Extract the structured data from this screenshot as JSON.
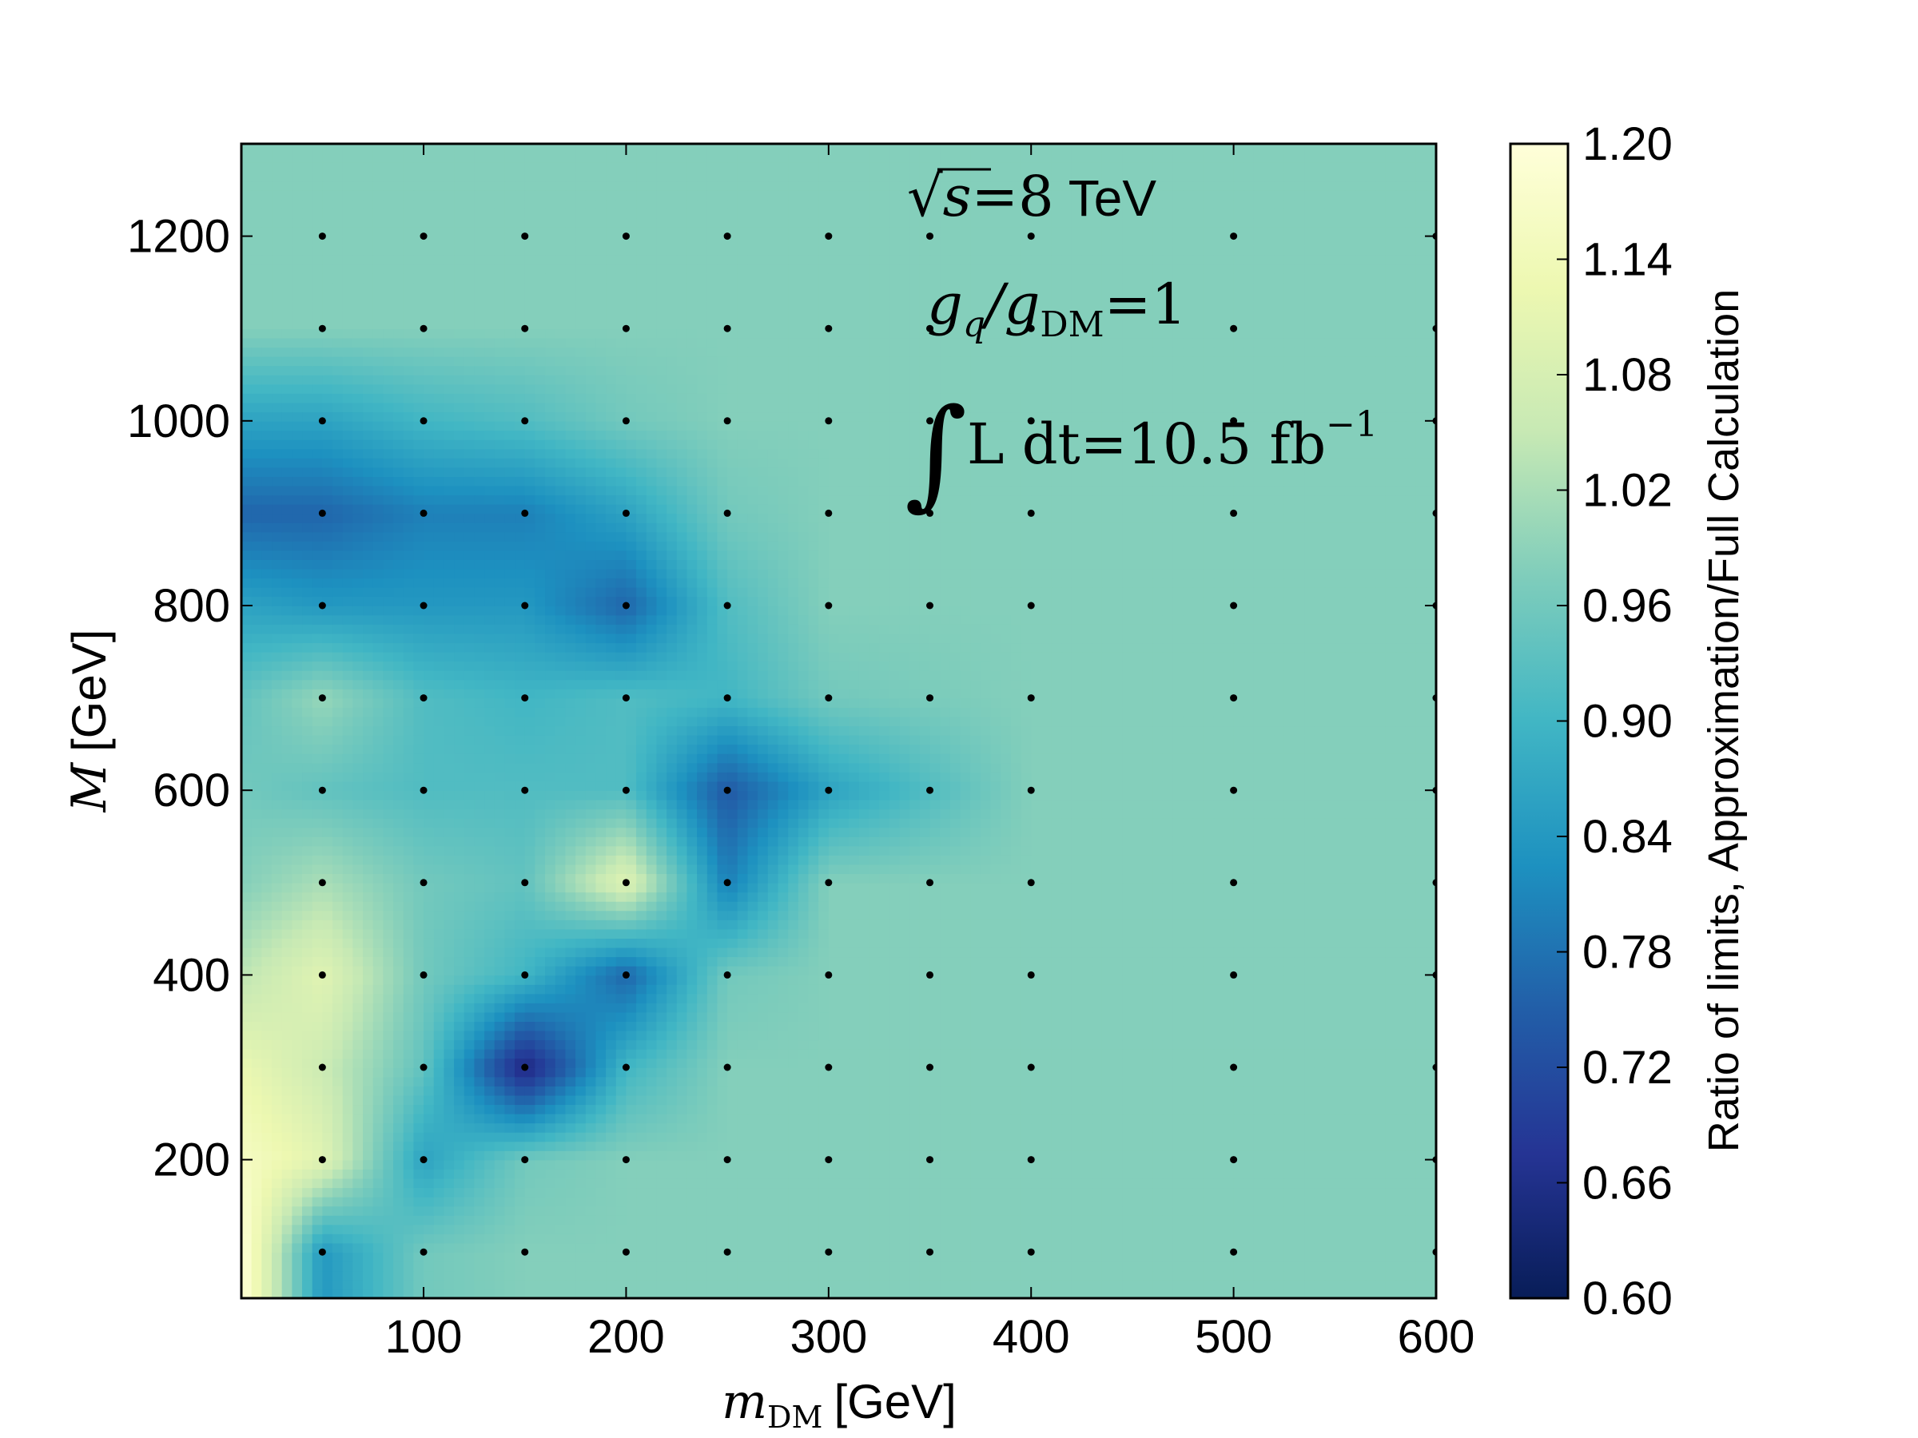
{
  "chart_data": {
    "type": "heatmap",
    "xlabel_symbol": "m",
    "xlabel_subscript": "DM",
    "xlabel_unit": "[GeV]",
    "ylabel_symbol": "M",
    "ylabel_unit": "[GeV]",
    "xlim": [
      10,
      600
    ],
    "ylim": [
      50,
      1300
    ],
    "x_ticks": [
      "100",
      "200",
      "300",
      "400",
      "500",
      "600"
    ],
    "x_tick_values": [
      100,
      200,
      300,
      400,
      500,
      600
    ],
    "y_ticks": [
      "200",
      "400",
      "600",
      "800",
      "1000",
      "1200"
    ],
    "y_tick_values": [
      200,
      400,
      600,
      800,
      1000,
      1200
    ],
    "colorbar_label": "Ratio of limits, Approximation/Full Calculation",
    "colorbar_range": [
      0.6,
      1.2
    ],
    "colorbar_ticks": [
      "1.20",
      "1.14",
      "1.08",
      "1.02",
      "0.96",
      "0.90",
      "0.84",
      "0.78",
      "0.72",
      "0.66",
      "0.60"
    ],
    "colorbar_tick_values": [
      1.2,
      1.14,
      1.08,
      1.02,
      0.96,
      0.9,
      0.84,
      0.78,
      0.72,
      0.66,
      0.6
    ],
    "colormap": [
      "#081d58",
      "#253494",
      "#225ea8",
      "#1d91c0",
      "#41b6c4",
      "#7fcdbb",
      "#c7e9b4",
      "#edf8b1",
      "#ffffd9"
    ],
    "annotations": {
      "energy_expr": "√s",
      "energy_value": "=8",
      "energy_unit": "TeV",
      "coupling_num": "g",
      "coupling_num_sub": "q",
      "coupling_den": "/g",
      "coupling_den_sub": "DM",
      "coupling_value": "=1",
      "lumi_integral": "∫",
      "lumi_expr": "L dt",
      "lumi_value": "=10.5 fb",
      "lumi_exp": "−1"
    },
    "background_value": 0.98,
    "grid_x": [
      10,
      50,
      100,
      150,
      200,
      250,
      300,
      400,
      500,
      600
    ],
    "grid_y": [
      100,
      200,
      300,
      400,
      500,
      600,
      700,
      800,
      900,
      1000,
      1100,
      1200
    ],
    "values": [
      [
        1.2,
        0.84,
        0.96,
        0.98,
        0.98,
        0.98,
        0.98,
        0.98,
        0.98,
        0.98
      ],
      [
        1.16,
        1.1,
        0.86,
        0.96,
        0.98,
        0.98,
        0.98,
        0.98,
        0.98,
        0.98
      ],
      [
        1.12,
        1.06,
        0.94,
        0.64,
        0.9,
        0.98,
        0.98,
        0.98,
        0.98,
        0.98
      ],
      [
        1.04,
        1.1,
        0.96,
        0.9,
        0.76,
        0.96,
        0.98,
        0.98,
        0.98,
        0.98
      ],
      [
        0.98,
        1.02,
        0.96,
        0.94,
        1.1,
        0.8,
        0.98,
        0.98,
        0.98,
        0.98
      ],
      [
        0.96,
        0.94,
        0.92,
        0.92,
        0.92,
        0.74,
        0.86,
        0.98,
        0.98,
        0.98
      ],
      [
        0.94,
        1.0,
        0.92,
        0.9,
        0.92,
        0.9,
        0.96,
        0.98,
        0.98,
        0.98
      ],
      [
        0.86,
        0.84,
        0.84,
        0.84,
        0.76,
        0.92,
        0.98,
        0.98,
        0.98,
        0.98
      ],
      [
        0.76,
        0.76,
        0.8,
        0.8,
        0.86,
        0.96,
        0.98,
        0.98,
        0.98,
        0.98
      ],
      [
        0.86,
        0.86,
        0.9,
        0.92,
        0.96,
        0.98,
        0.98,
        0.98,
        0.98,
        0.98
      ],
      [
        0.98,
        0.98,
        0.98,
        0.98,
        0.98,
        0.98,
        0.98,
        0.98,
        0.98,
        0.98
      ],
      [
        0.98,
        0.98,
        0.98,
        0.98,
        0.98,
        0.98,
        0.98,
        0.98,
        0.98,
        0.98
      ]
    ],
    "sample_points_x": [
      50,
      100,
      150,
      200,
      250,
      300,
      350,
      400,
      500,
      600
    ],
    "sample_points_y": [
      100,
      200,
      300,
      400,
      500,
      600,
      700,
      800,
      900,
      1000,
      1100,
      1200
    ]
  }
}
